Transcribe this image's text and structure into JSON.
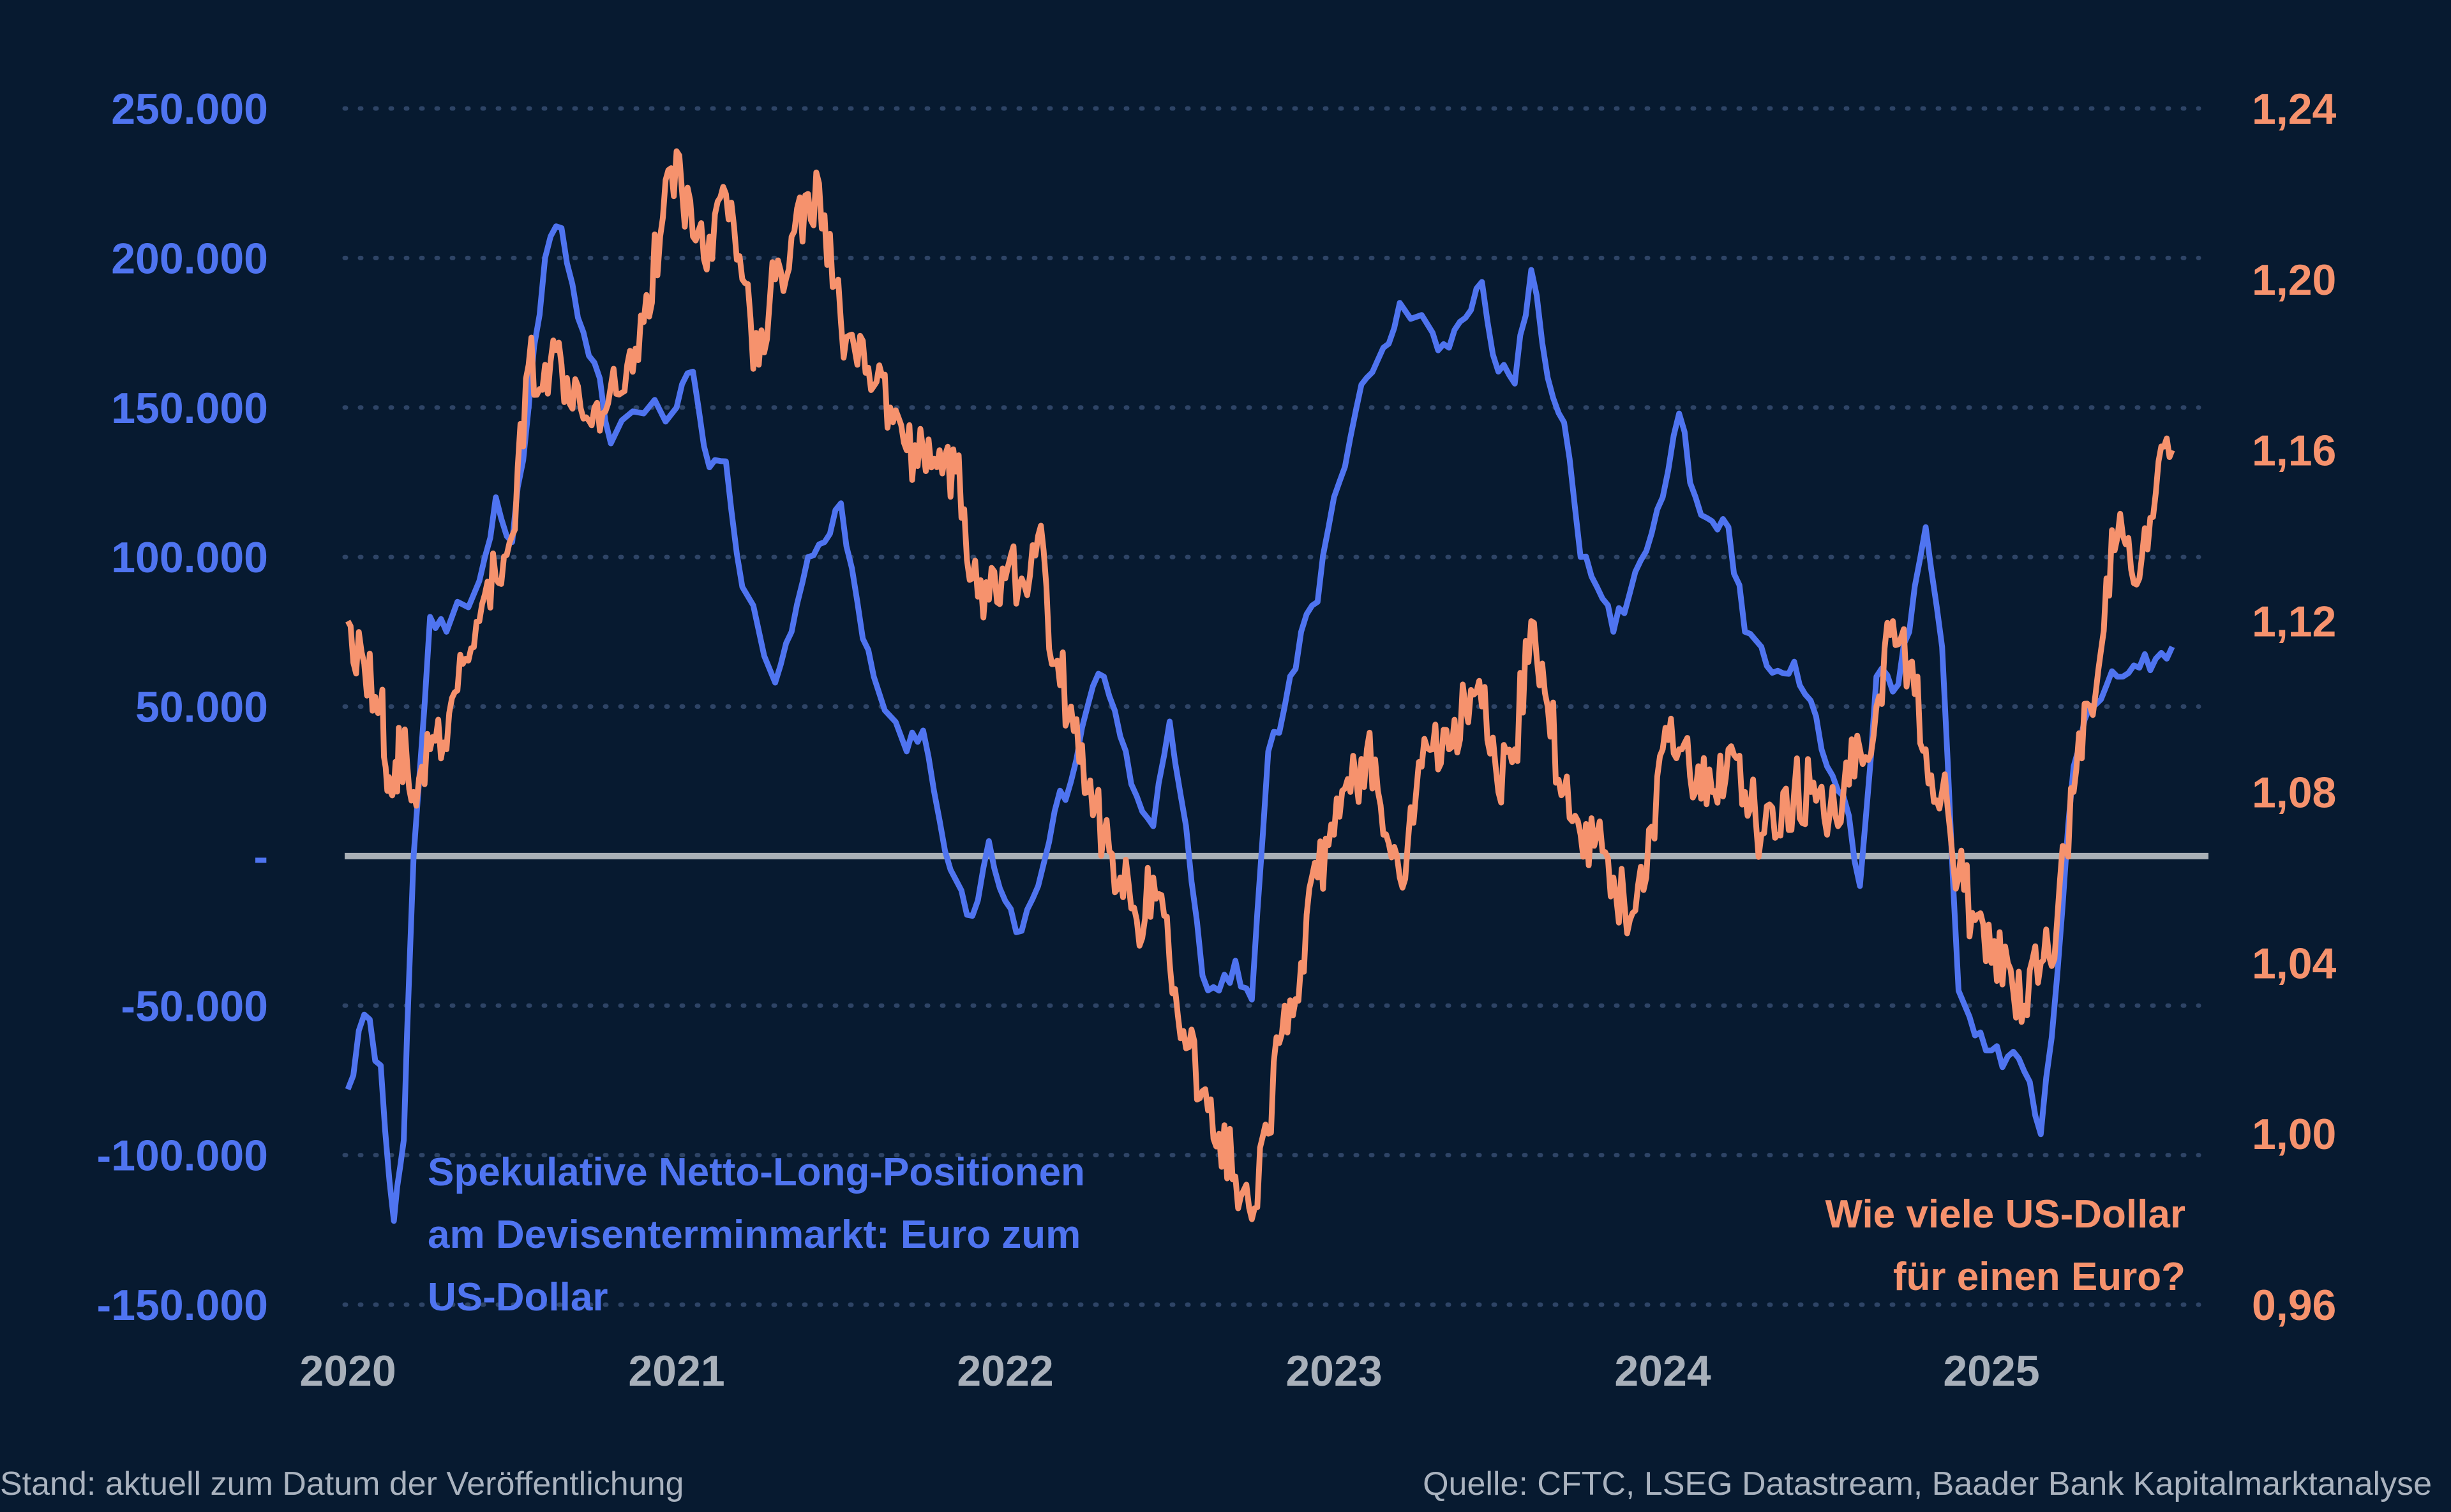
{
  "chart_data": {
    "type": "line",
    "title": "",
    "x_ticks": [
      "2020",
      "2021",
      "2022",
      "2023",
      "2024",
      "2025"
    ],
    "x_range": [
      2020.0,
      2025.65
    ],
    "left_axis": {
      "ticks": [
        250000,
        200000,
        150000,
        100000,
        50000,
        0,
        -50000,
        -100000,
        -150000
      ],
      "tick_labels": [
        "250.000",
        "200.000",
        "150.000",
        "100.000",
        "50.000",
        "-",
        "-50.000",
        "-100.000",
        "-150.000"
      ],
      "ylim": [
        -150000,
        250000
      ]
    },
    "right_axis": {
      "ticks": [
        1.24,
        1.2,
        1.16,
        1.12,
        1.08,
        1.04,
        1.0,
        0.96
      ],
      "tick_labels": [
        "1,24",
        "1,20",
        "1,16",
        "1,12",
        "1,08",
        "1,04",
        "1,00",
        "0,96"
      ],
      "ylim": [
        0.96,
        1.24
      ]
    },
    "series": [
      {
        "name": "Spekulative Netto-Long-Positionen am Devisenterminmarkt: Euro zum US-Dollar",
        "axis": "left",
        "color": "#4f74f0",
        "x": [
          2020.0,
          2020.05,
          2020.1,
          2020.14,
          2020.17,
          2020.2,
          2020.25,
          2020.3,
          2020.4,
          2020.45,
          2020.5,
          2020.55,
          2020.6,
          2020.65,
          2020.7,
          2020.75,
          2020.8,
          2020.9,
          2021.0,
          2021.05,
          2021.1,
          2021.15,
          2021.2,
          2021.3,
          2021.35,
          2021.4,
          2021.45,
          2021.5,
          2021.55,
          2021.6,
          2021.7,
          2021.75,
          2021.8,
          2021.85,
          2021.9,
          2021.95,
          2022.0,
          2022.05,
          2022.1,
          2022.15,
          2022.2,
          2022.25,
          2022.3,
          2022.35,
          2022.4,
          2022.45,
          2022.5,
          2022.55,
          2022.6,
          2022.65,
          2022.7,
          2022.75,
          2022.8,
          2022.85,
          2022.9,
          2022.95,
          2023.0,
          2023.05,
          2023.1,
          2023.15,
          2023.2,
          2023.3,
          2023.35,
          2023.4,
          2023.45,
          2023.5,
          2023.55,
          2023.6,
          2023.65,
          2023.7,
          2023.75,
          2023.8,
          2023.85,
          2023.9,
          2023.95,
          2024.0,
          2024.05,
          2024.1,
          2024.15,
          2024.2,
          2024.25,
          2024.3,
          2024.35,
          2024.4,
          2024.45,
          2024.5,
          2024.55,
          2024.6,
          2024.65,
          2024.7,
          2024.75,
          2024.8,
          2024.85,
          2024.9,
          2024.95,
          2025.0,
          2025.05,
          2025.1,
          2025.15,
          2025.2,
          2025.25,
          2025.3,
          2025.35,
          2025.4,
          2025.45,
          2025.5,
          2025.55
        ],
        "y": [
          -78000,
          -53000,
          -70000,
          -122000,
          -95000,
          0,
          80000,
          75000,
          92000,
          120000,
          105000,
          150000,
          200000,
          210000,
          180000,
          165000,
          138000,
          148000,
          150000,
          162000,
          130000,
          132000,
          90000,
          58000,
          75000,
          100000,
          105000,
          118000,
          85000,
          60000,
          35000,
          42000,
          12000,
          -8000,
          -20000,
          5000,
          -15000,
          -25000,
          -10000,
          15000,
          25000,
          50000,
          60000,
          40000,
          20000,
          10000,
          45000,
          10000,
          -40000,
          -45000,
          -35000,
          -48000,
          35000,
          50000,
          75000,
          85000,
          120000,
          140000,
          160000,
          170000,
          185000,
          175000,
          170000,
          180000,
          192000,
          162000,
          158000,
          196000,
          160000,
          145000,
          100000,
          90000,
          75000,
          88000,
          102000,
          120000,
          148000,
          120000,
          112000,
          110000,
          75000,
          70000,
          62000,
          65000,
          52000,
          30000,
          20000,
          -10000,
          60000,
          55000,
          75000,
          110000,
          70000,
          -45000,
          -60000,
          -65000,
          -67000,
          -72000,
          -93000,
          -40000,
          30000,
          50000,
          57000,
          60000,
          63000,
          66000,
          70000
        ]
      },
      {
        "name": "Wie viele US-Dollar für einen Euro?",
        "axis": "right",
        "color": "#f6926d",
        "x": [
          2020.0,
          2020.05,
          2020.1,
          2020.13,
          2020.16,
          2020.2,
          2020.25,
          2020.3,
          2020.35,
          2020.4,
          2020.45,
          2020.5,
          2020.55,
          2020.6,
          2020.65,
          2020.7,
          2020.75,
          2020.8,
          2020.85,
          2020.9,
          2020.95,
          2021.0,
          2021.05,
          2021.1,
          2021.15,
          2021.2,
          2021.25,
          2021.3,
          2021.35,
          2021.4,
          2021.45,
          2021.5,
          2021.55,
          2021.6,
          2021.65,
          2021.7,
          2021.75,
          2021.8,
          2021.85,
          2021.9,
          2021.95,
          2022.0,
          2022.05,
          2022.1,
          2022.15,
          2022.2,
          2022.25,
          2022.3,
          2022.35,
          2022.4,
          2022.45,
          2022.5,
          2022.55,
          2022.6,
          2022.65,
          2022.7,
          2022.75,
          2022.8,
          2022.85,
          2022.9,
          2022.95,
          2023.0,
          2023.05,
          2023.1,
          2023.15,
          2023.2,
          2023.25,
          2023.3,
          2023.35,
          2023.4,
          2023.45,
          2023.5,
          2023.55,
          2023.6,
          2023.65,
          2023.7,
          2023.75,
          2023.8,
          2023.85,
          2023.9,
          2023.95,
          2024.0,
          2024.05,
          2024.1,
          2024.15,
          2024.2,
          2024.25,
          2024.3,
          2024.35,
          2024.4,
          2024.45,
          2024.5,
          2024.55,
          2024.6,
          2024.65,
          2024.7,
          2024.75,
          2024.8,
          2024.85,
          2024.9,
          2024.95,
          2025.0,
          2025.05,
          2025.1,
          2025.15,
          2025.2,
          2025.25,
          2025.3,
          2025.35,
          2025.4,
          2025.45,
          2025.5,
          2025.55
        ],
        "y": [
          1.12,
          1.11,
          1.1,
          1.08,
          1.09,
          1.08,
          1.09,
          1.09,
          1.11,
          1.12,
          1.13,
          1.14,
          1.18,
          1.18,
          1.18,
          1.175,
          1.17,
          1.175,
          1.18,
          1.19,
          1.21,
          1.23,
          1.21,
          1.21,
          1.22,
          1.2,
          1.18,
          1.2,
          1.21,
          1.22,
          1.215,
          1.19,
          1.18,
          1.175,
          1.17,
          1.16,
          1.16,
          1.16,
          1.155,
          1.13,
          1.125,
          1.13,
          1.13,
          1.14,
          1.11,
          1.1,
          1.08,
          1.07,
          1.06,
          1.05,
          1.06,
          1.04,
          1.02,
          1.01,
          1.0,
          0.99,
          0.98,
          1.0,
          1.03,
          1.04,
          1.06,
          1.07,
          1.08,
          1.09,
          1.07,
          1.06,
          1.08,
          1.09,
          1.09,
          1.1,
          1.1,
          1.08,
          1.09,
          1.12,
          1.1,
          1.08,
          1.07,
          1.07,
          1.06,
          1.05,
          1.06,
          1.09,
          1.09,
          1.08,
          1.08,
          1.09,
          1.08,
          1.07,
          1.07,
          1.08,
          1.08,
          1.07,
          1.08,
          1.09,
          1.1,
          1.12,
          1.11,
          1.09,
          1.08,
          1.06,
          1.05,
          1.04,
          1.04,
          1.03,
          1.04,
          1.05,
          1.08,
          1.1,
          1.13,
          1.14,
          1.13,
          1.15,
          1.16
        ]
      }
    ],
    "zero_line": 0,
    "grid": "dotted horizontal",
    "annotations": [
      "Spekulative Netto-Long-Positionen am Devisenterminmarkt: Euro zum US-Dollar",
      "Wie viele US-Dollar für einen Euro?"
    ]
  },
  "labels": {
    "blue_label_lines": [
      "Spekulative Netto-Long-Positionen",
      "am Devisenterminmarkt: Euro zum",
      "US-Dollar"
    ],
    "orange_label_lines": [
      "Wie viele US-Dollar",
      "für einen Euro?"
    ]
  },
  "footer": {
    "left": "Stand: aktuell zum Datum der Veröffentlichung",
    "right": "Quelle: CFTC, LSEG Datastream, Baader Bank Kapitalmarktanalyse"
  },
  "colors": {
    "background": "#071a30",
    "blue": "#4f74f0",
    "orange": "#f6926d",
    "zero_line": "#a9b0b6",
    "grid": "#2e4466",
    "x_ticks": "#a8b0ba",
    "footer": "#aab3bf"
  }
}
